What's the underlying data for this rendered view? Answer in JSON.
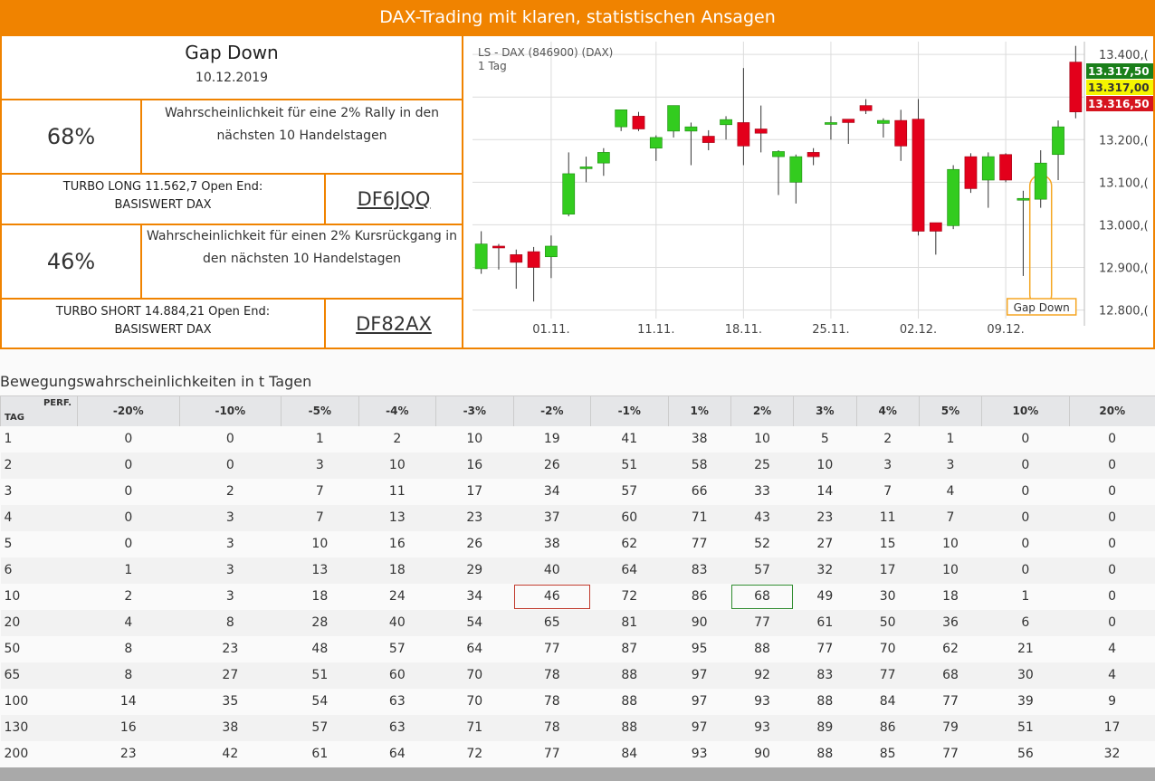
{
  "banner": {
    "title": "DAX-Trading mit klaren, statistischen Ansagen"
  },
  "signal": {
    "name": "Gap Down",
    "date": "10.12.2019"
  },
  "long": {
    "percent": "68%",
    "description": "Wahrscheinlichkeit für eine 2% Rally in den nächsten 10 Handelstagen",
    "product_line1": "TURBO LONG 11.562,7 Open End:",
    "product_line2": "BASISWERT DAX",
    "wkn": "DF6JQQ"
  },
  "short": {
    "percent": "46%",
    "description": "Wahrscheinlichkeit für einen 2% Kursrückgang in den nächsten 10 Handelstagen",
    "product_line1": "TURBO SHORT 14.884,21 Open End:",
    "product_line2": "BASISWERT DAX",
    "wkn": "DF82AX"
  },
  "chart_data": {
    "type": "candlestick",
    "title": "LS - DAX (846900) (DAX)",
    "subtitle": "1 Tag",
    "y_ticks": [
      "13.400,(",
      "13.200,(",
      "13.100,(",
      "13.000,(",
      "12.900,(",
      "12.800,("
    ],
    "y_tick_values": [
      13400,
      13200,
      13100,
      13000,
      12900,
      12800
    ],
    "ylim": [
      12780,
      13430
    ],
    "x_tick_labels": [
      "01.11.",
      "11.11.",
      "18.11.",
      "25.11.",
      "02.12.",
      "09.12."
    ],
    "x_tick_indices": [
      4,
      10,
      15,
      20,
      25,
      30
    ],
    "price_labels": [
      {
        "text": "13.317,50",
        "color": "#1a7f1a",
        "value": 13317.5
      },
      {
        "text": "13.317,00",
        "color": "#f5f500",
        "value": 13317
      },
      {
        "text": "13.316,50",
        "color": "#d6141e",
        "value": 13316.5
      }
    ],
    "annotation": "Gap Down",
    "annotation_index": 32,
    "candles": [
      {
        "o": 12897,
        "h": 12985,
        "l": 12885,
        "c": 12955
      },
      {
        "o": 12950,
        "h": 12955,
        "l": 12895,
        "c": 12948
      },
      {
        "o": 12930,
        "h": 12942,
        "l": 12850,
        "c": 12912
      },
      {
        "o": 12937,
        "h": 12948,
        "l": 12820,
        "c": 12900
      },
      {
        "o": 12925,
        "h": 12975,
        "l": 12875,
        "c": 12950
      },
      {
        "o": 13025,
        "h": 13170,
        "l": 13020,
        "c": 13120
      },
      {
        "o": 13135,
        "h": 13160,
        "l": 13100,
        "c": 13136
      },
      {
        "o": 13145,
        "h": 13180,
        "l": 13115,
        "c": 13170
      },
      {
        "o": 13230,
        "h": 13270,
        "l": 13220,
        "c": 13270
      },
      {
        "o": 13255,
        "h": 13265,
        "l": 13220,
        "c": 13225
      },
      {
        "o": 13180,
        "h": 13210,
        "l": 13150,
        "c": 13205
      },
      {
        "o": 13220,
        "h": 13280,
        "l": 13205,
        "c": 13280
      },
      {
        "o": 13220,
        "h": 13240,
        "l": 13140,
        "c": 13230
      },
      {
        "o": 13208,
        "h": 13222,
        "l": 13175,
        "c": 13193
      },
      {
        "o": 13235,
        "h": 13255,
        "l": 13200,
        "c": 13247
      },
      {
        "o": 13240,
        "h": 13368,
        "l": 13140,
        "c": 13185
      },
      {
        "o": 13225,
        "h": 13280,
        "l": 13170,
        "c": 13215
      },
      {
        "o": 13160,
        "h": 13175,
        "l": 13070,
        "c": 13172
      },
      {
        "o": 13100,
        "h": 13165,
        "l": 13050,
        "c": 13160
      },
      {
        "o": 13170,
        "h": 13180,
        "l": 13140,
        "c": 13160
      },
      {
        "o": 13240,
        "h": 13255,
        "l": 13200,
        "c": 13240
      },
      {
        "o": 13248,
        "h": 13245,
        "l": 13190,
        "c": 13240
      },
      {
        "o": 13280,
        "h": 13295,
        "l": 13260,
        "c": 13268
      },
      {
        "o": 13238,
        "h": 13250,
        "l": 13205,
        "c": 13245
      },
      {
        "o": 13245,
        "h": 13270,
        "l": 13150,
        "c": 13185
      },
      {
        "o": 13248,
        "h": 13295,
        "l": 12975,
        "c": 12985
      },
      {
        "o": 13005,
        "h": 13000,
        "l": 12930,
        "c": 12985
      },
      {
        "o": 12998,
        "h": 13140,
        "l": 12990,
        "c": 13130
      },
      {
        "o": 13160,
        "h": 13168,
        "l": 13075,
        "c": 13085
      },
      {
        "o": 13105,
        "h": 13170,
        "l": 13040,
        "c": 13160
      },
      {
        "o": 13165,
        "h": 13168,
        "l": 13100,
        "c": 13105
      },
      {
        "o": 13060,
        "h": 13080,
        "l": 12880,
        "c": 13062
      },
      {
        "o": 13060,
        "h": 13175,
        "l": 13040,
        "c": 13145
      },
      {
        "o": 13165,
        "h": 13245,
        "l": 13105,
        "c": 13230
      },
      {
        "o": 13382,
        "h": 13420,
        "l": 13250,
        "c": 13265
      }
    ]
  },
  "table": {
    "section_title": "Bewegungswahrscheinlichkeiten in t Tagen",
    "corner_perf": "PERF.",
    "corner_tag": "TAG",
    "headers": [
      "-20%",
      "-10%",
      "-5%",
      "-4%",
      "-3%",
      "-2%",
      "-1%",
      "1%",
      "2%",
      "3%",
      "4%",
      "5%",
      "10%",
      "20%"
    ],
    "rows": [
      [
        "1",
        "0",
        "0",
        "1",
        "2",
        "10",
        "19",
        "41",
        "38",
        "10",
        "5",
        "2",
        "1",
        "0",
        "0"
      ],
      [
        "2",
        "0",
        "0",
        "3",
        "10",
        "16",
        "26",
        "51",
        "58",
        "25",
        "10",
        "3",
        "3",
        "0",
        "0"
      ],
      [
        "3",
        "0",
        "2",
        "7",
        "11",
        "17",
        "34",
        "57",
        "66",
        "33",
        "14",
        "7",
        "4",
        "0",
        "0"
      ],
      [
        "4",
        "0",
        "3",
        "7",
        "13",
        "23",
        "37",
        "60",
        "71",
        "43",
        "23",
        "11",
        "7",
        "0",
        "0"
      ],
      [
        "5",
        "0",
        "3",
        "10",
        "16",
        "26",
        "38",
        "62",
        "77",
        "52",
        "27",
        "15",
        "10",
        "0",
        "0"
      ],
      [
        "6",
        "1",
        "3",
        "13",
        "18",
        "29",
        "40",
        "64",
        "83",
        "57",
        "32",
        "17",
        "10",
        "0",
        "0"
      ],
      [
        "10",
        "2",
        "3",
        "18",
        "24",
        "34",
        "46",
        "72",
        "86",
        "68",
        "49",
        "30",
        "18",
        "1",
        "0"
      ],
      [
        "20",
        "4",
        "8",
        "28",
        "40",
        "54",
        "65",
        "81",
        "90",
        "77",
        "61",
        "50",
        "36",
        "6",
        "0"
      ],
      [
        "50",
        "8",
        "23",
        "48",
        "57",
        "64",
        "77",
        "87",
        "95",
        "88",
        "77",
        "70",
        "62",
        "21",
        "4"
      ],
      [
        "65",
        "8",
        "27",
        "51",
        "60",
        "70",
        "78",
        "88",
        "97",
        "92",
        "83",
        "77",
        "68",
        "30",
        "4"
      ],
      [
        "100",
        "14",
        "35",
        "54",
        "63",
        "70",
        "78",
        "88",
        "97",
        "93",
        "88",
        "84",
        "77",
        "39",
        "9"
      ],
      [
        "130",
        "16",
        "38",
        "57",
        "63",
        "71",
        "78",
        "88",
        "97",
        "93",
        "89",
        "86",
        "79",
        "51",
        "17"
      ],
      [
        "200",
        "23",
        "42",
        "61",
        "64",
        "72",
        "77",
        "84",
        "93",
        "90",
        "88",
        "85",
        "77",
        "56",
        "32"
      ]
    ],
    "highlights": [
      {
        "row": 6,
        "col": 6,
        "color": "red"
      },
      {
        "row": 6,
        "col": 9,
        "color": "green"
      }
    ]
  }
}
